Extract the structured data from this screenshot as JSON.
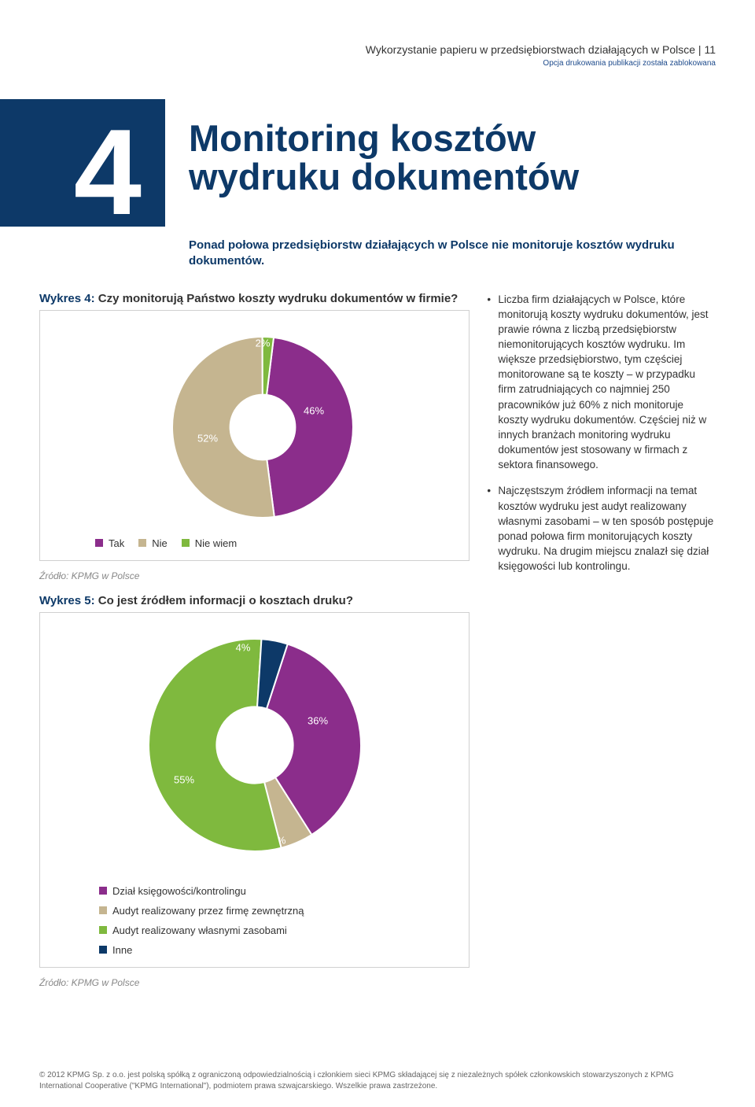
{
  "header": {
    "title": "Wykorzystanie papieru w przedsiębiorstwach działających w Polsce | 11",
    "note": "Opcja drukowania publikacji została zablokowana"
  },
  "chapter": {
    "number": "4",
    "title_line1": "Monitoring kosztów",
    "title_line2": "wydruku dokumentów"
  },
  "subtitle": "Ponad połowa przedsiębiorstw działających w Polsce nie monitoruje kosztów wydruku dokumentów.",
  "chart4": {
    "title_prefix": "Wykres 4: ",
    "title_body": "Czy monitorują Państwo koszty wydruku dokumentów w firmie?",
    "type": "donut",
    "slices": [
      {
        "label": "Tak",
        "value": 46,
        "color": "#8b2d8b",
        "display": "46%"
      },
      {
        "label": "Nie",
        "value": 52,
        "color": "#c5b590",
        "display": "52%"
      },
      {
        "label": "Nie wiem",
        "value": 2,
        "color": "#7fb93e",
        "display": "2%"
      }
    ],
    "background": "#ffffff",
    "inner_ratio": 0.36,
    "label_fontsize": 13,
    "label_color": "#ffffff",
    "source": "Źródło: KPMG w Polsce"
  },
  "chart5": {
    "title_prefix": "Wykres 5: ",
    "title_body": "Co jest źródłem informacji o kosztach druku?",
    "type": "donut",
    "slices": [
      {
        "label": "Dział księgowości/kontrolingu",
        "value": 36,
        "color": "#8b2d8b",
        "display": "36%"
      },
      {
        "label": "Audyt realizowany przez firmę zewnętrzną",
        "value": 5,
        "color": "#c5b590",
        "display": "5%"
      },
      {
        "label": "Audyt realizowany własnymi zasobami",
        "value": 55,
        "color": "#7fb93e",
        "display": "55%"
      },
      {
        "label": "Inne",
        "value": 4,
        "color": "#0d3968",
        "display": "4%"
      }
    ],
    "background": "#ffffff",
    "inner_ratio": 0.36,
    "label_fontsize": 13,
    "label_color": "#ffffff",
    "source": "Źródło: KPMG w Polsce"
  },
  "bullets": [
    "Liczba firm działających w Polsce, które monitorują koszty wydruku dokumentów, jest prawie równa z liczbą przedsiębiorstw niemonitorujących kosztów wydruku. Im większe przedsiębiorstwo, tym częściej monitorowane są te koszty – w przypadku firm zatrudniających co najmniej 250 pracowników już 60% z nich monitoruje koszty wydruku dokumentów. Częściej niż w innych branżach monitoring wydruku dokumentów jest stosowany w firmach z sektora finansowego.",
    "Najczęstszym źródłem informacji na temat kosztów wydruku jest audyt realizowany własnymi zasobami – w ten sposób postępuje ponad połowa firm monitorujących koszty wydruku. Na drugim miejscu znalazł się dział księgowości lub kontrolingu."
  ],
  "legend_colors": {
    "purple": "#8b2d8b",
    "tan": "#c5b590",
    "green": "#7fb93e",
    "navy": "#0d3968"
  },
  "footer": "© 2012 KPMG Sp. z o.o. jest polską spółką z ograniczoną odpowiedzialnością i członkiem sieci KPMG składającej się z niezależnych spółek członkowskich stowarzyszonych z KPMG International Cooperative (\"KPMG International\"), podmiotem prawa szwajcarskiego. Wszelkie prawa zastrzeżone."
}
